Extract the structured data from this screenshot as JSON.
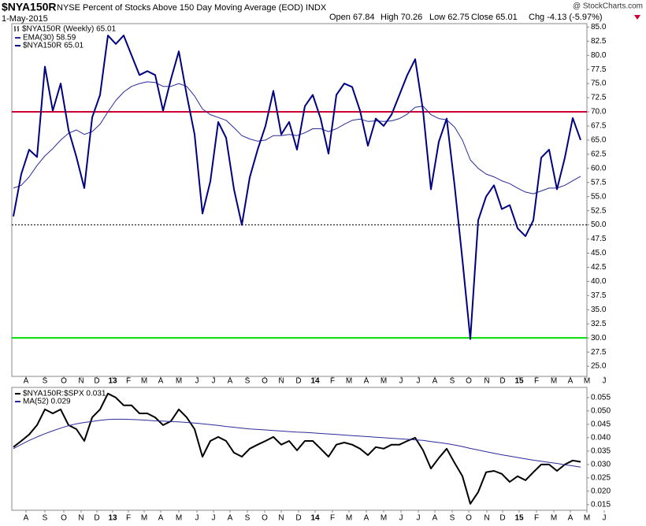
{
  "chart_data": [
    {
      "type": "line",
      "symbol": "$NYA150R",
      "title": "NYSE Percent of Stocks Above 150 Day Moving Average (EOD) INDX",
      "date": "1-May-2015",
      "source": "@ StockCharts.com",
      "quote": [
        "Open 67.84",
        "High 70.26",
        "Low 62.75",
        "Close 65.01",
        "Chg -4.13 (-5.97%)"
      ],
      "legend_title": "$NYA150R (Weekly) 65.01",
      "series": [
        {
          "name": "EMA(30) 58.59",
          "color": "#2a2a9a",
          "width": 1,
          "values": [
            56.5,
            57,
            58.5,
            60.5,
            62.2,
            63.5,
            65,
            66.2,
            66.8,
            66,
            66.5,
            67.8,
            70,
            72,
            73.5,
            74.5,
            75,
            75.3,
            75.2,
            74.5,
            74.5,
            75,
            74.5,
            72.8,
            70.5,
            69.5,
            69,
            68.5,
            67.2,
            65.8,
            65.2,
            64.8,
            65,
            65.8,
            65.8,
            66,
            65.8,
            66.3,
            67,
            67,
            66.5,
            67,
            67.8,
            68.5,
            68.7,
            68.3,
            68.4,
            68.3,
            68.4,
            68.8,
            69.6,
            70.8,
            71,
            69.5,
            68.8,
            68.6,
            67.3,
            65,
            61.5,
            60,
            59,
            58.5,
            57.8,
            57.3,
            56.5,
            55.8,
            55.5,
            56,
            56.5,
            56.5,
            57,
            57.8,
            58.59
          ]
        },
        {
          "name": "$NYA150R 65.01",
          "color": "#000080",
          "width": 2,
          "values": [
            51.5,
            59,
            63.3,
            62,
            78,
            70.2,
            75,
            66.8,
            62,
            56.5,
            69,
            73,
            83.5,
            82,
            83.5,
            80,
            76.5,
            77.2,
            76.5,
            70.2,
            75.8,
            80.7,
            73,
            66,
            52,
            57.7,
            68.2,
            65.4,
            56.3,
            50,
            58.4,
            63.3,
            67.5,
            73.7,
            66,
            68.2,
            63.3,
            71,
            73,
            68.8,
            62.6,
            73,
            75,
            74.4,
            70.2,
            64,
            68.8,
            67.5,
            69.5,
            73,
            76.5,
            79.3,
            70.2,
            56.3,
            64.7,
            68.8,
            57,
            43.8,
            29.8,
            50.8,
            55,
            57,
            52.8,
            53.5,
            49.4,
            48,
            50.8,
            61.9,
            63.3,
            56.3,
            61.9,
            68.9,
            65.01
          ]
        }
      ],
      "hlines": [
        {
          "value": 70,
          "color": "#cc0033",
          "width": 2
        },
        {
          "value": 50,
          "color": "#000000",
          "width": 1,
          "dash": "2,2"
        },
        {
          "value": 30,
          "color": "#00dd00",
          "width": 2
        }
      ],
      "xlim": [
        -0.2,
        72.8
      ],
      "ylim": [
        23.2,
        85.6
      ],
      "yticks": [
        {
          "value": 25,
          "label": "25.0"
        },
        27.5,
        {
          "value": 30,
          "label": "30.0"
        },
        32.5,
        {
          "value": 35,
          "label": "35.0"
        },
        37.5,
        {
          "value": 40,
          "label": "40.0"
        },
        42.5,
        {
          "value": 45,
          "label": "45.0"
        },
        47.5,
        {
          "value": 50,
          "label": "50.0"
        },
        52.5,
        {
          "value": 55,
          "label": "55.0"
        },
        57.5,
        {
          "value": 60,
          "label": "60.0"
        },
        62.5,
        {
          "value": 65,
          "label": "65.0"
        },
        67.5,
        {
          "value": 70,
          "label": "70.0"
        },
        72.5,
        {
          "value": 75,
          "label": "75.0"
        },
        77.5,
        {
          "value": 80,
          "label": "80.0"
        },
        82.5,
        {
          "value": 85,
          "label": "85.0"
        }
      ],
      "xticks": [
        {
          "value": 1.6,
          "label": "A"
        },
        {
          "value": 4.0,
          "label": "S"
        },
        {
          "value": 6.4,
          "label": "O"
        },
        {
          "value": 8.6,
          "label": "N"
        },
        {
          "value": 10.6,
          "label": "D"
        },
        {
          "value": 12.6,
          "label": "13"
        },
        {
          "value": 14.6,
          "label": "F"
        },
        {
          "value": 16.6,
          "label": "M"
        },
        {
          "value": 18.7,
          "label": "A"
        },
        {
          "value": 21.0,
          "label": "M"
        },
        {
          "value": 23.3,
          "label": "J"
        },
        {
          "value": 25.4,
          "label": "J"
        },
        {
          "value": 27.5,
          "label": "A"
        },
        {
          "value": 29.7,
          "label": "S"
        },
        {
          "value": 31.9,
          "label": "O"
        },
        {
          "value": 34.0,
          "label": "N"
        },
        {
          "value": 36.2,
          "label": "D"
        },
        {
          "value": 38.3,
          "label": "14"
        },
        {
          "value": 40.5,
          "label": "F"
        },
        {
          "value": 42.6,
          "label": "M"
        },
        {
          "value": 44.8,
          "label": "A"
        },
        {
          "value": 47.0,
          "label": "M"
        },
        {
          "value": 49.2,
          "label": "J"
        },
        {
          "value": 51.4,
          "label": "J"
        },
        {
          "value": 53.5,
          "label": "A"
        },
        {
          "value": 55.7,
          "label": "S"
        },
        {
          "value": 57.8,
          "label": "O"
        },
        {
          "value": 60.1,
          "label": "N"
        },
        {
          "value": 62.1,
          "label": "D"
        },
        {
          "value": 64.2,
          "label": "15"
        },
        {
          "value": 66.4,
          "label": "F"
        },
        {
          "value": 68.6,
          "label": "M"
        },
        {
          "value": 70.7,
          "label": "A"
        },
        {
          "value": 72.8,
          "label": "M"
        },
        {
          "value": 75.0,
          "label": "J"
        }
      ]
    },
    {
      "type": "line",
      "series": [
        {
          "name": "$NYA150R:$SPX 0.031",
          "color": "#000000",
          "width": 2,
          "values": [
            0.0365,
            0.0388,
            0.0412,
            0.0447,
            0.0506,
            0.0491,
            0.0506,
            0.0447,
            0.0432,
            0.0388,
            0.0476,
            0.0506,
            0.0565,
            0.055,
            0.0521,
            0.0521,
            0.0491,
            0.0491,
            0.0476,
            0.0447,
            0.0462,
            0.0506,
            0.0476,
            0.0432,
            0.0329,
            0.0388,
            0.0403,
            0.0388,
            0.0344,
            0.0329,
            0.0359,
            0.0374,
            0.0388,
            0.0403,
            0.0374,
            0.0388,
            0.0353,
            0.0388,
            0.0388,
            0.0359,
            0.0329,
            0.0374,
            0.0382,
            0.0374,
            0.0359,
            0.0335,
            0.0365,
            0.0359,
            0.0374,
            0.0374,
            0.0388,
            0.04,
            0.0353,
            0.0285,
            0.0324,
            0.0359,
            0.0306,
            0.0256,
            0.0153,
            0.0197,
            0.0271,
            0.0276,
            0.0265,
            0.0235,
            0.0256,
            0.0241,
            0.0271,
            0.03,
            0.03,
            0.0276,
            0.03,
            0.0315,
            0.031
          ]
        },
        {
          "name": "MA(52) 0.029",
          "color": "#2a2a9a",
          "width": 1,
          "values": [
            0.0359,
            0.0375,
            0.039,
            0.0403,
            0.0415,
            0.0426,
            0.0436,
            0.0445,
            0.0452,
            0.0457,
            0.0461,
            0.0465,
            0.0468,
            0.0469,
            0.0469,
            0.0468,
            0.0467,
            0.0465,
            0.0463,
            0.0462,
            0.046,
            0.0459,
            0.0457,
            0.0455,
            0.0452,
            0.0449,
            0.0446,
            0.0442,
            0.0439,
            0.0436,
            0.0433,
            0.0431,
            0.0429,
            0.0427,
            0.0425,
            0.0423,
            0.0421,
            0.042,
            0.0418,
            0.0416,
            0.0414,
            0.0412,
            0.041,
            0.0408,
            0.0406,
            0.0404,
            0.0402,
            0.04,
            0.0398,
            0.0396,
            0.0394,
            0.0392,
            0.039,
            0.0386,
            0.0382,
            0.0378,
            0.0373,
            0.0367,
            0.036,
            0.0354,
            0.0348,
            0.0342,
            0.0336,
            0.0331,
            0.0326,
            0.0321,
            0.0316,
            0.0312,
            0.0308,
            0.0304,
            0.0299,
            0.0295,
            0.029
          ]
        }
      ],
      "xlim": [
        -0.2,
        72.8
      ],
      "ylim": [
        0.0129,
        0.0588
      ],
      "yticks": [
        0.015,
        {
          "value": 0.02,
          "label": "0.020"
        },
        0.025,
        {
          "value": 0.03,
          "label": "0.030"
        },
        0.035,
        {
          "value": 0.04,
          "label": "0.040"
        },
        0.045,
        {
          "value": 0.05,
          "label": "0.050"
        },
        0.055
      ],
      "xticks": [
        {
          "value": 1.6,
          "label": "A"
        },
        {
          "value": 4.0,
          "label": "S"
        },
        {
          "value": 6.4,
          "label": "O"
        },
        {
          "value": 8.6,
          "label": "N"
        },
        {
          "value": 10.6,
          "label": "D"
        },
        {
          "value": 12.6,
          "label": "13"
        },
        {
          "value": 14.6,
          "label": "F"
        },
        {
          "value": 16.6,
          "label": "M"
        },
        {
          "value": 18.7,
          "label": "A"
        },
        {
          "value": 21.0,
          "label": "M"
        },
        {
          "value": 23.3,
          "label": "J"
        },
        {
          "value": 25.4,
          "label": "J"
        },
        {
          "value": 27.5,
          "label": "A"
        },
        {
          "value": 29.7,
          "label": "S"
        },
        {
          "value": 31.9,
          "label": "O"
        },
        {
          "value": 34.0,
          "label": "N"
        },
        {
          "value": 36.2,
          "label": "D"
        },
        {
          "value": 38.3,
          "label": "14"
        },
        {
          "value": 40.5,
          "label": "F"
        },
        {
          "value": 42.6,
          "label": "M"
        },
        {
          "value": 44.8,
          "label": "A"
        },
        {
          "value": 47.0,
          "label": "M"
        },
        {
          "value": 49.2,
          "label": "J"
        },
        {
          "value": 51.4,
          "label": "J"
        },
        {
          "value": 53.5,
          "label": "A"
        },
        {
          "value": 55.7,
          "label": "S"
        },
        {
          "value": 57.8,
          "label": "O"
        },
        {
          "value": 60.1,
          "label": "N"
        },
        {
          "value": 62.1,
          "label": "D"
        },
        {
          "value": 64.2,
          "label": "15"
        },
        {
          "value": 66.4,
          "label": "F"
        },
        {
          "value": 68.6,
          "label": "M"
        },
        {
          "value": 70.7,
          "label": "A"
        },
        {
          "value": 72.8,
          "label": "M"
        },
        {
          "value": 75.0,
          "label": "J"
        }
      ]
    }
  ]
}
